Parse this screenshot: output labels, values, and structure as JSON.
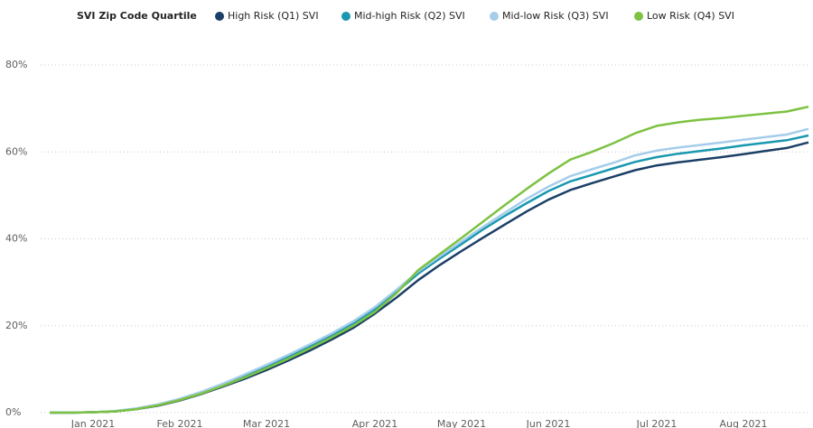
{
  "chart_data": {
    "type": "line",
    "legend_title": "SVI Zip Code Quartile",
    "categories": [
      null,
      null,
      "Jan 2021",
      null,
      null,
      null,
      "Feb 2021",
      null,
      null,
      null,
      "Mar 2021",
      null,
      null,
      null,
      null,
      "Apr 2021",
      null,
      null,
      null,
      "May 2021",
      null,
      null,
      null,
      "Jun 2021",
      null,
      null,
      null,
      null,
      "Jul 2021",
      null,
      null,
      null,
      "Aug 2021",
      null,
      null,
      null
    ],
    "series": [
      {
        "name": "High Risk (Q1) SVI",
        "color": "#1b3f66",
        "values": [
          0,
          0,
          0.1,
          0.3,
          0.8,
          1.6,
          2.8,
          4.3,
          6,
          7.8,
          9.8,
          12,
          14.3,
          16.8,
          19.5,
          22.8,
          26.5,
          30.5,
          34,
          37.2,
          40.3,
          43.3,
          46.3,
          49,
          51.2,
          52.8,
          54.3,
          55.8,
          56.9,
          57.6,
          58.2,
          58.8,
          59.5,
          60.2,
          60.9,
          62.2
        ]
      },
      {
        "name": "Mid-high Risk (Q2) SVI",
        "color": "#1a98b0",
        "values": [
          0,
          0,
          0.1,
          0.3,
          0.9,
          1.8,
          3,
          4.6,
          6.4,
          8.4,
          10.6,
          12.9,
          15.3,
          17.8,
          20.6,
          23.8,
          27.8,
          32,
          35.5,
          38.8,
          42.2,
          45.3,
          48.2,
          51,
          53.2,
          54.7,
          56.2,
          57.7,
          58.8,
          59.6,
          60.2,
          60.8,
          61.5,
          62.1,
          62.7,
          63.8
        ]
      },
      {
        "name": "Mid-low Risk (Q3) SVI",
        "color": "#a5cdea",
        "values": [
          0,
          0,
          0.1,
          0.4,
          1,
          1.9,
          3.2,
          4.8,
          6.7,
          8.8,
          11,
          13.3,
          15.7,
          18.2,
          21,
          24.3,
          28.3,
          32.5,
          36,
          39.4,
          42.8,
          46,
          49.2,
          52,
          54.4,
          56,
          57.5,
          59.2,
          60.3,
          61,
          61.6,
          62.2,
          62.8,
          63.4,
          64,
          65.3
        ]
      },
      {
        "name": "Low Risk (Q4) SVI",
        "color": "#7dc242",
        "values": [
          0,
          0,
          0.1,
          0.3,
          0.8,
          1.7,
          2.9,
          4.4,
          6.2,
          8.1,
          10.2,
          12.4,
          14.8,
          17.3,
          20,
          23.2,
          27.5,
          32.8,
          36.5,
          40.2,
          44,
          47.8,
          51.5,
          55,
          58.2,
          60,
          62,
          64.3,
          66,
          66.8,
          67.4,
          67.8,
          68.3,
          68.8,
          69.3,
          70.4
        ]
      }
    ],
    "ylim": [
      0,
      80
    ],
    "yticks": [
      {
        "value": 0,
        "label": "0%"
      },
      {
        "value": 20,
        "label": "20%"
      },
      {
        "value": 40,
        "label": "40%"
      },
      {
        "value": 60,
        "label": "60%"
      },
      {
        "value": 80,
        "label": "80%"
      }
    ],
    "grid": true
  }
}
